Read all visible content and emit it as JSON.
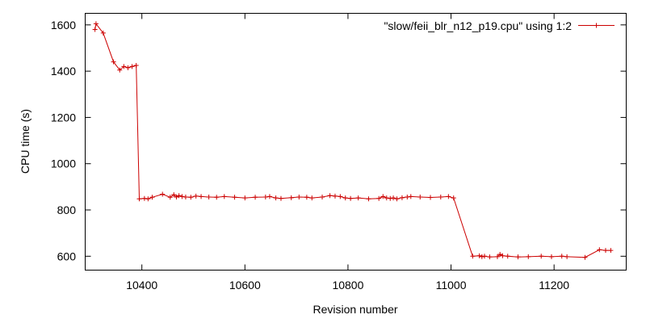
{
  "chart_data": {
    "type": "line",
    "title": "",
    "xlabel": "Revision number",
    "ylabel": "CPU time (s)",
    "xlim": [
      10290,
      11340
    ],
    "ylim": [
      540,
      1650
    ],
    "x_ticks": [
      10400,
      10600,
      10800,
      11000,
      11200
    ],
    "y_ticks": [
      600,
      800,
      1000,
      1200,
      1400,
      1600
    ],
    "grid": false,
    "legend_position": "top-right",
    "series": [
      {
        "name": "\"slow/feii_blr_n12_p19.cpu\" using 1:2",
        "color": "#cc0000",
        "marker": "plus",
        "x": [
          10309,
          10311,
          10325,
          10345,
          10357,
          10365,
          10373,
          10381,
          10389,
          10395,
          10405,
          10412,
          10420,
          10440,
          10455,
          10462,
          10467,
          10472,
          10478,
          10485,
          10495,
          10505,
          10515,
          10530,
          10545,
          10560,
          10580,
          10600,
          10620,
          10640,
          10648,
          10660,
          10670,
          10690,
          10705,
          10720,
          10730,
          10750,
          10765,
          10775,
          10785,
          10795,
          10805,
          10820,
          10840,
          10860,
          10868,
          10875,
          10882,
          10888,
          10895,
          10905,
          10915,
          10922,
          10940,
          10960,
          10980,
          10995,
          11005,
          11042,
          11055,
          11060,
          11065,
          11075,
          11090,
          11095,
          11100,
          11110,
          11130,
          11150,
          11175,
          11195,
          11215,
          11225,
          11260,
          11288,
          11300,
          11310
        ],
        "y": [
          1580,
          1605,
          1565,
          1440,
          1405,
          1420,
          1415,
          1420,
          1425,
          848,
          850,
          848,
          855,
          868,
          855,
          866,
          856,
          862,
          858,
          856,
          855,
          860,
          858,
          856,
          855,
          858,
          855,
          852,
          855,
          856,
          858,
          852,
          850,
          853,
          856,
          855,
          852,
          856,
          862,
          860,
          858,
          852,
          850,
          852,
          848,
          850,
          858,
          852,
          850,
          852,
          848,
          853,
          856,
          858,
          856,
          854,
          856,
          858,
          852,
          600,
          602,
          598,
          600,
          597,
          598,
          608,
          602,
          600,
          597,
          598,
          600,
          598,
          600,
          598,
          595,
          628,
          625,
          625
        ]
      }
    ]
  }
}
